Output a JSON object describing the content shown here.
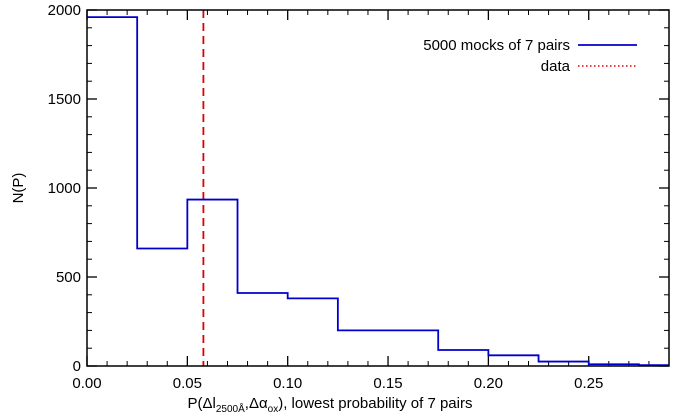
{
  "chart_data": {
    "type": "histogram",
    "title": "",
    "xlabel": {
      "prefix": "P(Δl",
      "sub1": "2500Å",
      "mid": ",Δα",
      "sub2": "ox",
      "suffix": "), lowest probability of 7 pairs"
    },
    "ylabel": "N(P)",
    "xlim": [
      0.0,
      0.29
    ],
    "ylim": [
      0,
      2000
    ],
    "xticks": [
      0.0,
      0.05,
      0.1,
      0.15,
      0.2,
      0.25
    ],
    "xtick_labels": [
      "0.00",
      "0.05",
      "0.10",
      "0.15",
      "0.20",
      "0.25"
    ],
    "yticks": [
      0,
      500,
      1000,
      1500,
      2000
    ],
    "ytick_labels": [
      "0",
      "500",
      "1000",
      "1500",
      "2000"
    ],
    "bin_edges": [
      0.0,
      0.025,
      0.05,
      0.075,
      0.1,
      0.125,
      0.15,
      0.175,
      0.2,
      0.225,
      0.25,
      0.275,
      0.3
    ],
    "counts": [
      1960,
      660,
      935,
      410,
      380,
      200,
      200,
      90,
      60,
      25,
      10,
      5
    ],
    "series": [
      {
        "name": "5000 mocks of 7 pairs",
        "color": "#0000cc",
        "style": "solid"
      },
      {
        "name": "data",
        "color": "#dd0000",
        "style": "dotted"
      }
    ],
    "reference_line": {
      "x": 0.058,
      "color": "#dd0000",
      "style": "dashed"
    },
    "legend_position": "top-right",
    "grid": false
  }
}
